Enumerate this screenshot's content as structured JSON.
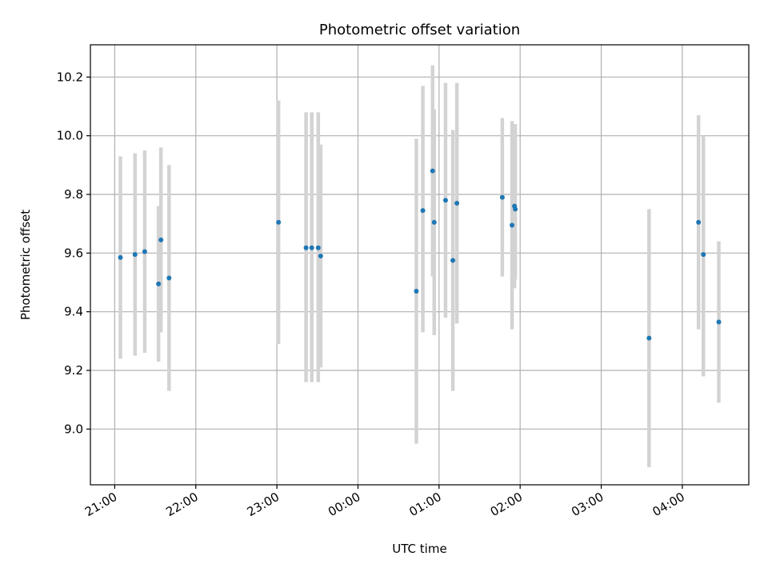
{
  "chart_data": {
    "type": "scatter",
    "title": "Photometric offset variation",
    "xlabel": "UTC time",
    "ylabel": "Photometric offset",
    "xlim": [
      -0.3,
      7.82
    ],
    "ylim": [
      8.81,
      10.31
    ],
    "grid": true,
    "colors": {
      "points": "#1f77b4",
      "errorbars": "#d3d3d3",
      "grid": "#b0b0b0"
    },
    "x_ticks": [
      {
        "value": 0,
        "label": "21:00"
      },
      {
        "value": 1,
        "label": "22:00"
      },
      {
        "value": 2,
        "label": "23:00"
      },
      {
        "value": 3,
        "label": "00:00"
      },
      {
        "value": 4,
        "label": "01:00"
      },
      {
        "value": 5,
        "label": "02:00"
      },
      {
        "value": 6,
        "label": "03:00"
      },
      {
        "value": 7,
        "label": "04:00"
      }
    ],
    "y_ticks": [
      {
        "value": 9.0,
        "label": "9.0"
      },
      {
        "value": 9.2,
        "label": "9.2"
      },
      {
        "value": 9.4,
        "label": "9.4"
      },
      {
        "value": 9.6,
        "label": "9.6"
      },
      {
        "value": 9.8,
        "label": "9.8"
      },
      {
        "value": 10.0,
        "label": "10.0"
      },
      {
        "value": 10.2,
        "label": "10.2"
      }
    ],
    "points": [
      {
        "x": 0.07,
        "y": 9.585,
        "ylo": 9.24,
        "yhi": 9.93
      },
      {
        "x": 0.25,
        "y": 9.595,
        "ylo": 9.25,
        "yhi": 9.94
      },
      {
        "x": 0.37,
        "y": 9.605,
        "ylo": 9.26,
        "yhi": 9.95
      },
      {
        "x": 0.54,
        "y": 9.495,
        "ylo": 9.23,
        "yhi": 9.76
      },
      {
        "x": 0.57,
        "y": 9.645,
        "ylo": 9.33,
        "yhi": 9.96
      },
      {
        "x": 0.67,
        "y": 9.515,
        "ylo": 9.13,
        "yhi": 9.9
      },
      {
        "x": 2.02,
        "y": 9.705,
        "ylo": 9.29,
        "yhi": 10.12
      },
      {
        "x": 2.36,
        "y": 9.618,
        "ylo": 9.16,
        "yhi": 10.08
      },
      {
        "x": 2.43,
        "y": 9.618,
        "ylo": 9.16,
        "yhi": 10.08
      },
      {
        "x": 2.51,
        "y": 9.618,
        "ylo": 9.16,
        "yhi": 10.08
      },
      {
        "x": 2.54,
        "y": 9.59,
        "ylo": 9.21,
        "yhi": 9.97
      },
      {
        "x": 3.72,
        "y": 9.47,
        "ylo": 8.95,
        "yhi": 9.99
      },
      {
        "x": 3.8,
        "y": 9.745,
        "ylo": 9.33,
        "yhi": 10.17
      },
      {
        "x": 3.92,
        "y": 9.88,
        "ylo": 9.52,
        "yhi": 10.24
      },
      {
        "x": 3.94,
        "y": 9.705,
        "ylo": 9.32,
        "yhi": 10.09
      },
      {
        "x": 4.08,
        "y": 9.78,
        "ylo": 9.38,
        "yhi": 10.18
      },
      {
        "x": 4.17,
        "y": 9.575,
        "ylo": 9.13,
        "yhi": 10.02
      },
      {
        "x": 4.22,
        "y": 9.77,
        "ylo": 9.36,
        "yhi": 10.18
      },
      {
        "x": 4.78,
        "y": 9.79,
        "ylo": 9.52,
        "yhi": 10.06
      },
      {
        "x": 4.9,
        "y": 9.695,
        "ylo": 9.34,
        "yhi": 10.05
      },
      {
        "x": 4.93,
        "y": 9.76,
        "ylo": 9.48,
        "yhi": 10.04
      },
      {
        "x": 4.94,
        "y": 9.75,
        "ylo": 9.51,
        "yhi": 10.04
      },
      {
        "x": 6.59,
        "y": 9.31,
        "ylo": 8.87,
        "yhi": 9.75
      },
      {
        "x": 7.2,
        "y": 9.705,
        "ylo": 9.34,
        "yhi": 10.07
      },
      {
        "x": 7.26,
        "y": 9.595,
        "ylo": 9.18,
        "yhi": 10.0
      },
      {
        "x": 7.45,
        "y": 9.365,
        "ylo": 9.09,
        "yhi": 9.64
      }
    ]
  }
}
